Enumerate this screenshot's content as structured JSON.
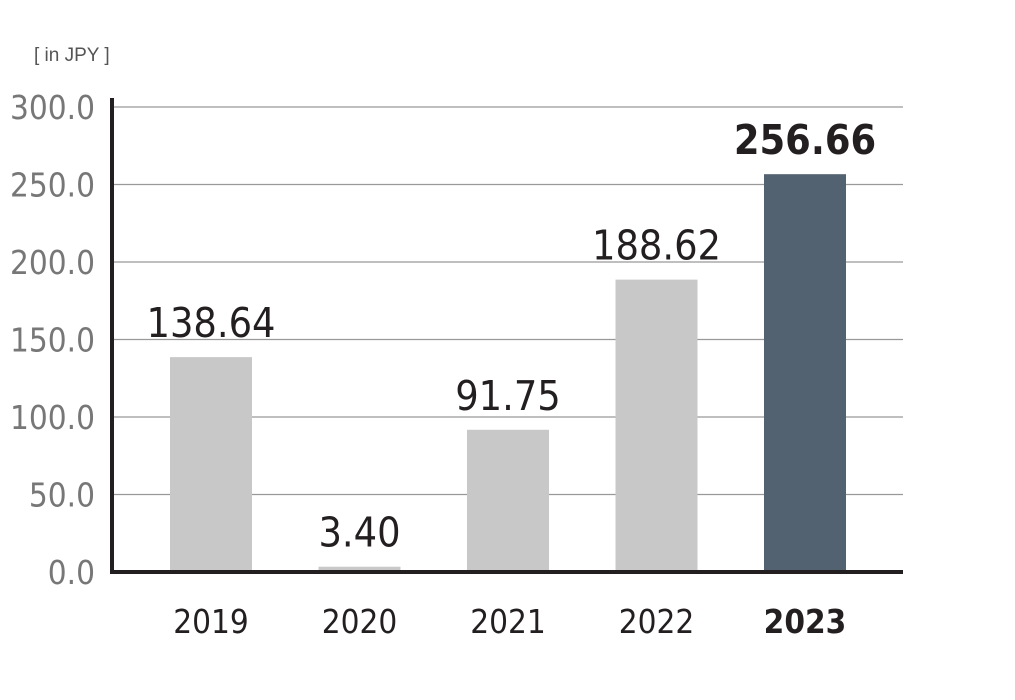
{
  "chart_data": {
    "type": "bar",
    "unit_label": "[ in JPY ]",
    "categories": [
      "2019",
      "2020",
      "2021",
      "2022",
      "2023"
    ],
    "values": [
      138.64,
      3.4,
      91.75,
      188.62,
      256.66
    ],
    "value_labels": [
      "138.64",
      "3.40",
      "91.75",
      "188.62",
      "256.66"
    ],
    "highlight_index": 4,
    "ylim": [
      0,
      300
    ],
    "yticks": [
      "0.0",
      "50.0",
      "100.0",
      "150.0",
      "200.0",
      "250.0",
      "300.0"
    ],
    "grid": true,
    "colors": {
      "bar": "#c8c8c8",
      "highlight": "#526270",
      "axis": "#231f20",
      "grid": "#999999"
    }
  }
}
